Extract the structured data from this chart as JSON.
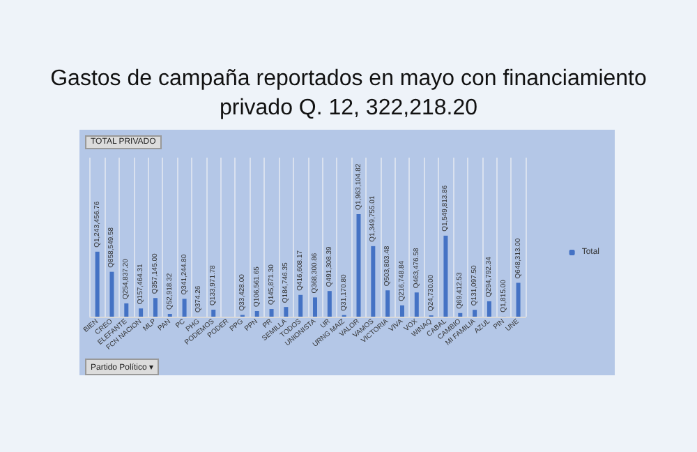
{
  "chart_data": {
    "type": "bar",
    "title": "Gastos de campaña  reportados en mayo con financiamiento privado Q. 12, 322,218.20",
    "categories": [
      "BIEN",
      "CREO",
      "ELEFANTE",
      "FCN NACION",
      "MLP",
      "PAN",
      "PC",
      "PHG",
      "PODEMOS",
      "PODER",
      "PPG",
      "PPN",
      "PR",
      "SEMILLA",
      "TODOS",
      "UNIONISTA",
      "UR",
      "URNG MAIZ",
      "VALOR",
      "VAMOS",
      "VICTORIA",
      "VIVA",
      "VOX",
      "WINAQ",
      "CABAL",
      "CAMBIO",
      "MI FAMILIA",
      "AZUL",
      "PIN",
      "UNE"
    ],
    "series": [
      {
        "name": "Total",
        "color": "#4472c4",
        "values": [
          1243456.76,
          858549.58,
          254837.2,
          157464.31,
          357145.0,
          52918.32,
          341244.8,
          374.26,
          133971.78,
          null,
          33428.0,
          106561.65,
          145871.3,
          184746.35,
          416608.17,
          368300.86,
          491308.39,
          31170.8,
          1963104.82,
          1349755.01,
          503803.48,
          216748.84,
          463476.58,
          24730.0,
          1549813.86,
          69412.53,
          131097.5,
          294792.34,
          1815.0,
          648313.0
        ],
        "value_labels": [
          "Q1,243,456.76",
          "Q858,549.58",
          "Q254,837.20",
          "Q157,464.31",
          "Q357,145.00",
          "Q52,918.32",
          "Q341,244.80",
          "Q374.26",
          "Q133,971.78",
          null,
          "Q33,428.00",
          "Q106,561.65",
          "Q145,871.30",
          "Q184,746.35",
          "Q416,608.17",
          "Q368,300.86",
          "Q491,308.39",
          "Q31,170.80",
          "Q1,963,104.82",
          "Q1,349,755.01",
          "Q503,803.48",
          "Q216,748.84",
          "Q463,476.58",
          "Q24,730.00",
          "Q1,549,813.86",
          "Q69,412.53",
          "Q131,097.50",
          "Q294,792.34",
          "Q1,815.00",
          "Q648,313.00"
        ]
      }
    ],
    "grid": "x",
    "legend": "right",
    "annotations": [
      "TOTAL PRIVADO",
      "Partido Político ▾"
    ]
  }
}
